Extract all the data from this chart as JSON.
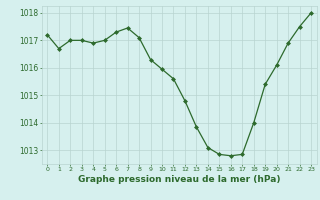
{
  "x": [
    0,
    1,
    2,
    3,
    4,
    5,
    6,
    7,
    8,
    9,
    10,
    11,
    12,
    13,
    14,
    15,
    16,
    17,
    18,
    19,
    20,
    21,
    22,
    23
  ],
  "y": [
    1017.2,
    1016.7,
    1017.0,
    1017.0,
    1016.9,
    1017.0,
    1017.3,
    1017.45,
    1017.1,
    1016.3,
    1015.95,
    1015.6,
    1014.8,
    1013.85,
    1013.1,
    1012.85,
    1012.8,
    1012.85,
    1014.0,
    1015.4,
    1016.1,
    1016.9,
    1017.5,
    1018.0
  ],
  "line_color": "#2d6a2d",
  "marker": "D",
  "marker_size": 2.0,
  "bg_color": "#d6f0ee",
  "grid_color": "#b8d4d0",
  "tick_color": "#2d6a2d",
  "xlabel": "Graphe pression niveau de la mer (hPa)",
  "xlabel_color": "#2d6a2d",
  "xlabel_fontsize": 6.5,
  "xlim": [
    -0.5,
    23.5
  ],
  "ylim": [
    1012.5,
    1018.25
  ],
  "yticks": [
    1013,
    1014,
    1015,
    1016,
    1017,
    1018
  ],
  "xticks": [
    0,
    1,
    2,
    3,
    4,
    5,
    6,
    7,
    8,
    9,
    10,
    11,
    12,
    13,
    14,
    15,
    16,
    17,
    18,
    19,
    20,
    21,
    22,
    23
  ]
}
